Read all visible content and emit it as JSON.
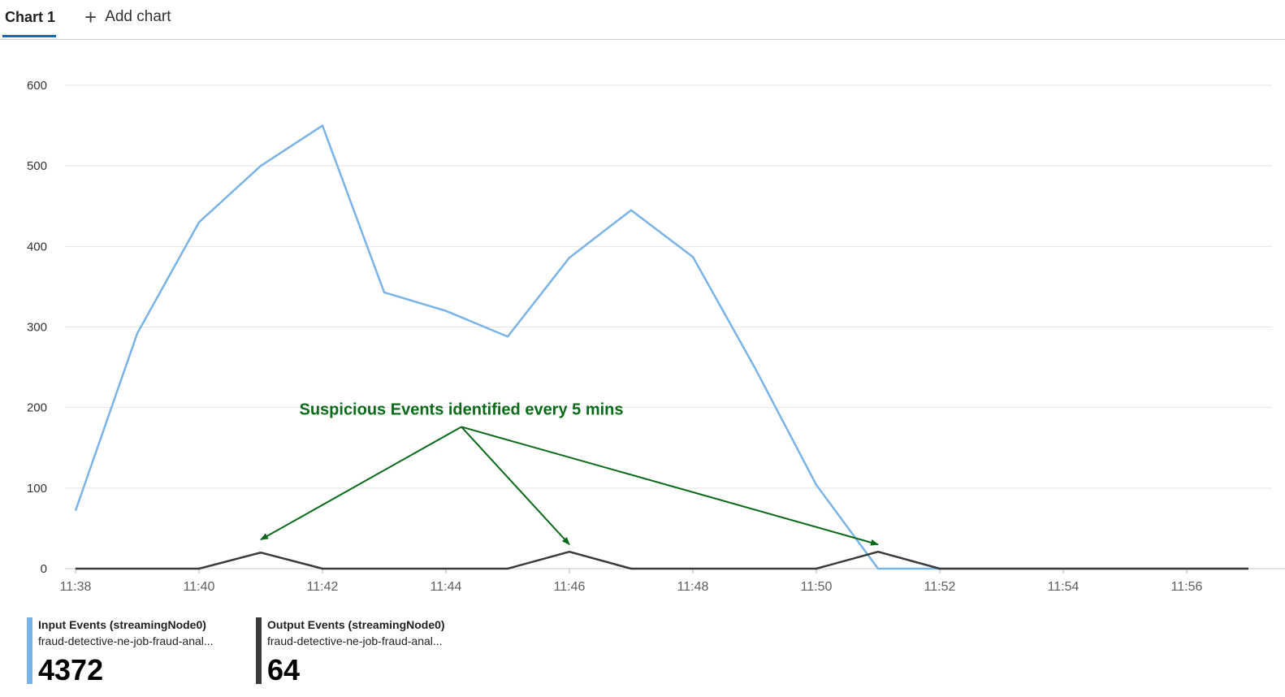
{
  "tabs": {
    "active": "Chart 1",
    "add_label": "Add chart"
  },
  "chart_data": {
    "type": "line",
    "title": "",
    "xlabel": "",
    "ylabel": "",
    "ylim": [
      0,
      600
    ],
    "yticks": [
      0,
      100,
      200,
      300,
      400,
      500,
      600
    ],
    "xticks": [
      "11:38",
      "11:40",
      "11:42",
      "11:44",
      "11:46",
      "11:48",
      "11:50",
      "11:52",
      "11:54",
      "11:56"
    ],
    "x": [
      "11:38",
      "11:39",
      "11:40",
      "11:41",
      "11:42",
      "11:43",
      "11:44",
      "11:45",
      "11:46",
      "11:47",
      "11:48",
      "11:49",
      "11:50",
      "11:51",
      "11:52",
      "11:53",
      "11:54",
      "11:55",
      "11:56",
      "11:57"
    ],
    "grid": true,
    "series": [
      {
        "name": "Input Events (streamingNode0)",
        "color": "#7ab3e8",
        "values": [
          72,
          292,
          430,
          500,
          550,
          343,
          320,
          288,
          386,
          445,
          387,
          250,
          104,
          0,
          0,
          0,
          0,
          0,
          0,
          0
        ]
      },
      {
        "name": "Output Events (streamingNode0)",
        "color": "#3b3a39",
        "values": [
          0,
          0,
          0,
          20,
          0,
          0,
          0,
          0,
          21,
          0,
          0,
          0,
          0,
          21,
          0,
          0,
          0,
          0,
          0,
          0
        ]
      }
    ],
    "annotation": {
      "text": "Suspicious Events identified every 5 mins",
      "color": "#0b6a1a",
      "origin": {
        "x": "11:44:15",
        "y": 176
      },
      "targets": [
        {
          "x": "11:41",
          "y": 36
        },
        {
          "x": "11:46",
          "y": 30
        },
        {
          "x": "11:51",
          "y": 30
        }
      ]
    }
  },
  "legend": [
    {
      "name": "Input Events (streamingNode0)",
      "resource": "fraud-detective-ne-job-fraud-anal...",
      "value": "4372",
      "color": "#7ab3e8"
    },
    {
      "name": "Output Events (streamingNode0)",
      "resource": "fraud-detective-ne-job-fraud-anal...",
      "value": "64",
      "color": "#3b3a39"
    }
  ]
}
